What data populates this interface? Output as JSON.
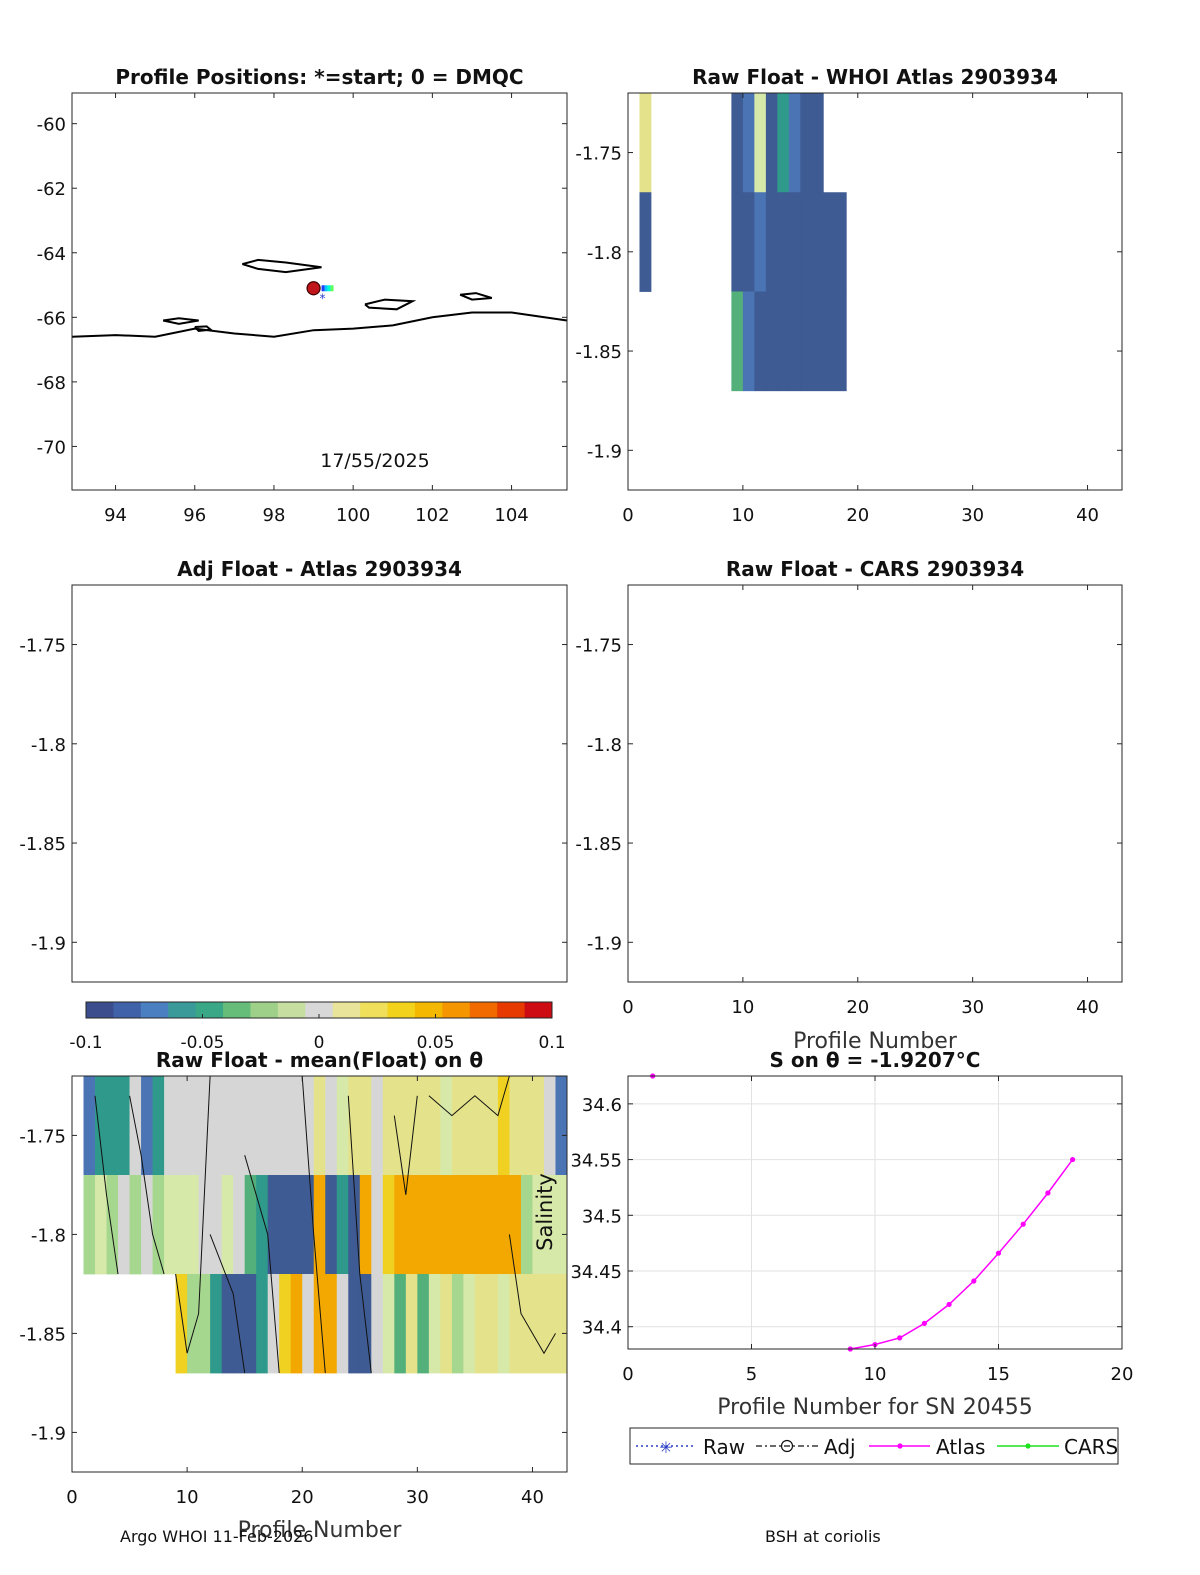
{
  "footer": {
    "left": "Argo WHOI 11-Feb-2026",
    "right": "BSH at coriolis"
  },
  "colors": {
    "blue": "#3f5b93",
    "mblue": "#4a74b4",
    "teal": "#2f9a8b",
    "green": "#53b07a",
    "lgreen": "#a6d78e",
    "pale": "#d7e9a8",
    "gray": "#d6d6d6",
    "lyellow": "#e4e28a",
    "yellow": "#f0d020",
    "orange": "#f2a800",
    "magenta": "#ff00ff"
  },
  "chart_data": [
    {
      "id": "positions",
      "type": "scatter",
      "title": "Profile Positions: *=start; 0 = DMQC",
      "xlim": [
        92.9,
        105.4
      ],
      "ylim": [
        -71.35,
        -59.05
      ],
      "xticks": [
        94,
        96,
        98,
        100,
        102,
        104
      ],
      "yticks": [
        -60,
        -62,
        -64,
        -66,
        -68,
        -70
      ],
      "annotation": "17/55/2025",
      "points": [
        {
          "label": "start",
          "x": 99.0,
          "y": -65.1
        }
      ],
      "coastlines": [
        [
          [
            92.9,
            -66.6
          ],
          [
            94.0,
            -66.55
          ],
          [
            95.0,
            -66.6
          ],
          [
            96.0,
            -66.35
          ],
          [
            97.0,
            -66.5
          ],
          [
            98.0,
            -66.6
          ],
          [
            99.0,
            -66.4
          ],
          [
            100.0,
            -66.35
          ],
          [
            101.0,
            -66.25
          ],
          [
            102.0,
            -66.0
          ],
          [
            103.0,
            -65.85
          ],
          [
            104.0,
            -65.85
          ],
          [
            105.4,
            -66.1
          ]
        ],
        [
          [
            97.2,
            -64.35
          ],
          [
            97.6,
            -64.22
          ],
          [
            98.3,
            -64.3
          ],
          [
            99.2,
            -64.45
          ],
          [
            98.3,
            -64.6
          ],
          [
            97.6,
            -64.5
          ],
          [
            97.2,
            -64.35
          ]
        ],
        [
          [
            100.3,
            -65.6
          ],
          [
            100.8,
            -65.45
          ],
          [
            101.5,
            -65.5
          ],
          [
            101.1,
            -65.75
          ],
          [
            100.4,
            -65.7
          ],
          [
            100.3,
            -65.6
          ]
        ],
        [
          [
            95.2,
            -66.1
          ],
          [
            95.6,
            -66.03
          ],
          [
            96.1,
            -66.1
          ],
          [
            95.6,
            -66.2
          ],
          [
            95.2,
            -66.1
          ]
        ],
        [
          [
            102.7,
            -65.3
          ],
          [
            103.1,
            -65.25
          ],
          [
            103.5,
            -65.4
          ],
          [
            103.0,
            -65.45
          ],
          [
            102.7,
            -65.3
          ]
        ],
        [
          [
            96.0,
            -66.3
          ],
          [
            96.3,
            -66.28
          ],
          [
            96.4,
            -66.38
          ],
          [
            96.1,
            -66.42
          ],
          [
            96.0,
            -66.3
          ]
        ]
      ]
    },
    {
      "id": "raw-atlas",
      "type": "heatmap",
      "title": "Raw Float - WHOI Atlas  2903934",
      "xlim": [
        0,
        43
      ],
      "ylim": [
        -1.92,
        -1.72
      ],
      "xticks": [
        0,
        10,
        20,
        30,
        40
      ],
      "yticks": [
        -1.75,
        -1.8,
        -1.85,
        -1.9
      ],
      "ybands": [
        [
          -1.72,
          -1.77
        ],
        [
          -1.77,
          -1.82
        ],
        [
          -1.82,
          -1.87
        ]
      ],
      "columns": [
        {
          "x": [
            1,
            2
          ],
          "bands": [
            "lyellow",
            "blue",
            null
          ]
        },
        {
          "x": [
            9,
            10
          ],
          "bands": [
            "blue",
            "blue",
            "green"
          ]
        },
        {
          "x": [
            10,
            11
          ],
          "bands": [
            "mblue",
            "blue",
            "mblue"
          ]
        },
        {
          "x": [
            11,
            12
          ],
          "bands": [
            "pale",
            "mblue",
            "blue"
          ]
        },
        {
          "x": [
            12,
            13
          ],
          "bands": [
            "blue",
            "blue",
            "blue"
          ]
        },
        {
          "x": [
            13,
            14
          ],
          "bands": [
            "teal",
            "blue",
            "blue"
          ]
        },
        {
          "x": [
            14,
            15
          ],
          "bands": [
            "mblue",
            "blue",
            "blue"
          ]
        },
        {
          "x": [
            15,
            17
          ],
          "bands": [
            "blue",
            "blue",
            "blue"
          ]
        },
        {
          "x": [
            17,
            19
          ],
          "bands": [
            null,
            "blue",
            "blue"
          ]
        }
      ]
    },
    {
      "id": "adj-atlas",
      "type": "heatmap",
      "title": "Adj Float - Atlas  2903934",
      "xlim": [
        0,
        43
      ],
      "ylim": [
        -1.92,
        -1.72
      ],
      "yticks": [
        -1.75,
        -1.8,
        -1.85,
        -1.9
      ],
      "columns": []
    },
    {
      "id": "raw-cars",
      "type": "heatmap",
      "title": "Raw Float - CARS  2903934",
      "xlim": [
        0,
        43
      ],
      "ylim": [
        -1.92,
        -1.72
      ],
      "xticks": [
        0,
        10,
        20,
        30,
        40
      ],
      "yticks": [
        -1.75,
        -1.8,
        -1.85,
        -1.9
      ],
      "xlabel": "Profile Number",
      "columns": []
    },
    {
      "id": "colorbar",
      "type": "heatmap",
      "clim": [
        -0.1,
        0.1
      ],
      "ticks": [
        -0.1,
        -0.05,
        0,
        0.05,
        0.1
      ],
      "tick_labels": [
        "-0.1",
        "-0.05",
        "0",
        "0.05",
        "0.1"
      ]
    },
    {
      "id": "anomaly",
      "type": "heatmap",
      "title": "Raw Float - mean(Float) on θ",
      "xlim": [
        0,
        43
      ],
      "ylim": [
        -1.92,
        -1.72
      ],
      "xticks": [
        0,
        10,
        20,
        30,
        40
      ],
      "yticks": [
        -1.75,
        -1.8,
        -1.85,
        -1.9
      ],
      "xlabel": "Profile Number",
      "colorbar_label": "Salinity",
      "ybands": [
        [
          -1.72,
          -1.77
        ],
        [
          -1.77,
          -1.82
        ],
        [
          -1.82,
          -1.87
        ]
      ],
      "columns": [
        [
          "mblue",
          "lgreen",
          null
        ],
        [
          "teal",
          "pale",
          null
        ],
        [
          "teal",
          "lgreen",
          null
        ],
        [
          "teal",
          "gray",
          null
        ],
        [
          "gray",
          "lgreen",
          null
        ],
        [
          "mblue",
          "gray",
          null
        ],
        [
          "teal",
          "lgreen",
          null
        ],
        [
          "gray",
          "pale",
          null
        ],
        [
          "gray",
          "pale",
          "yellow"
        ],
        [
          "gray",
          "pale",
          "lgreen"
        ],
        [
          "gray",
          "gray",
          "lgreen"
        ],
        [
          "gray",
          "gray",
          "teal"
        ],
        [
          "gray",
          "pale",
          "blue"
        ],
        [
          "gray",
          "gray",
          "blue"
        ],
        [
          "gray",
          "green",
          "blue"
        ],
        [
          "gray",
          "teal",
          "teal"
        ],
        [
          "gray",
          "blue",
          "gray"
        ],
        [
          "gray",
          "blue",
          "yellow"
        ],
        [
          "gray",
          "blue",
          "orange"
        ],
        [
          "gray",
          "blue",
          "gray"
        ],
        [
          "lyellow",
          "orange",
          "orange"
        ],
        [
          "gray",
          "blue",
          "orange"
        ],
        [
          "pale",
          "teal",
          "gray"
        ],
        [
          "lyellow",
          "blue",
          "blue"
        ],
        [
          "lyellow",
          "orange",
          "blue"
        ],
        [
          "gray",
          "gray",
          "gray"
        ],
        [
          "lyellow",
          "yellow",
          "pale"
        ],
        [
          "lyellow",
          "orange",
          "green"
        ],
        [
          "lyellow",
          "orange",
          "lyellow"
        ],
        [
          "lyellow",
          "orange",
          "green"
        ],
        [
          "lyellow",
          "orange",
          "pale"
        ],
        [
          "pale",
          "orange",
          "lyellow"
        ],
        [
          "lyellow",
          "orange",
          "lgreen"
        ],
        [
          "lyellow",
          "orange",
          "pale"
        ],
        [
          "lyellow",
          "orange",
          "lyellow"
        ],
        [
          "lyellow",
          "orange",
          "lyellow"
        ],
        [
          "yellow",
          "orange",
          "pale"
        ],
        [
          "lyellow",
          "orange",
          "lyellow"
        ],
        [
          "lyellow",
          "lgreen",
          "lyellow"
        ],
        [
          "lyellow",
          "pale",
          "lyellow"
        ],
        [
          "gray",
          "pale",
          "lyellow"
        ],
        [
          "mblue",
          "pale",
          "lyellow"
        ]
      ],
      "x_start": 1
    },
    {
      "id": "s-on-theta",
      "type": "line",
      "title": "S on θ = -1.9207°C",
      "xlabel": "Profile Number for SN 20455",
      "xlim": [
        0,
        20
      ],
      "ylim": [
        34.38,
        34.625
      ],
      "xticks": [
        0,
        5,
        10,
        15,
        20
      ],
      "yticks": [
        34.4,
        34.45,
        34.5,
        34.55,
        34.6
      ],
      "ytick_labels": [
        "34.4",
        "34.45",
        "34.5",
        "34.55",
        "34.6"
      ],
      "grid": true,
      "legend": {
        "placement": "bottom",
        "entries": [
          "Raw",
          "Adj",
          "Atlas",
          "CARS"
        ]
      },
      "series": [
        {
          "name": "Atlas",
          "points": [
            [
              1,
              34.625
            ]
          ]
        },
        {
          "name": "Atlas",
          "points": [
            [
              9,
              34.38
            ],
            [
              10,
              34.384
            ],
            [
              11,
              34.39
            ],
            [
              12,
              34.403
            ],
            [
              13,
              34.42
            ],
            [
              14,
              34.441
            ],
            [
              15,
              34.466
            ],
            [
              16,
              34.492
            ],
            [
              17,
              34.52
            ],
            [
              18,
              34.55
            ]
          ]
        }
      ]
    }
  ]
}
